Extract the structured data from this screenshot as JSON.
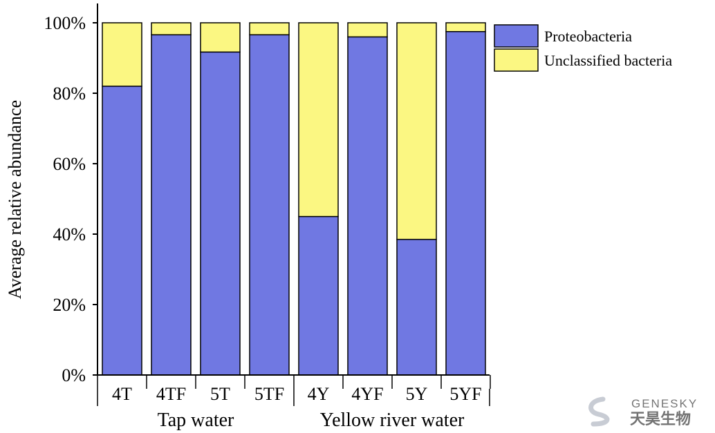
{
  "chart_data": {
    "type": "bar",
    "stacked": true,
    "categories": [
      "4T",
      "4TF",
      "5T",
      "5TF",
      "4Y",
      "4YF",
      "5Y",
      "5YF"
    ],
    "groups": [
      {
        "label": "Tap water",
        "categories": [
          "4T",
          "4TF",
          "5T",
          "5TF"
        ]
      },
      {
        "label": "Yellow river water",
        "categories": [
          "4Y",
          "4YF",
          "5Y",
          "5YF"
        ]
      }
    ],
    "series": [
      {
        "name": "Proteobacteria",
        "color": "#7078e2",
        "values": [
          82,
          96.6,
          91.7,
          96.6,
          45,
          96,
          38.5,
          97.5
        ]
      },
      {
        "name": "Unclassified bacteria",
        "color": "#fbf782",
        "values": [
          18,
          3.4,
          8.3,
          3.4,
          55,
          4,
          61.5,
          2.5
        ]
      }
    ],
    "title": "",
    "xlabel": "",
    "ylabel": "Average relative abundance",
    "ylim": [
      0,
      100
    ],
    "yticks": [
      "0%",
      "20%",
      "40%",
      "60%",
      "80%",
      "100%"
    ],
    "grid": false,
    "legend": "top-right"
  },
  "watermark": {
    "brand": "GENESKY",
    "subtitle": "天昊生物",
    "icon": "s-swoosh-logo-icon"
  }
}
